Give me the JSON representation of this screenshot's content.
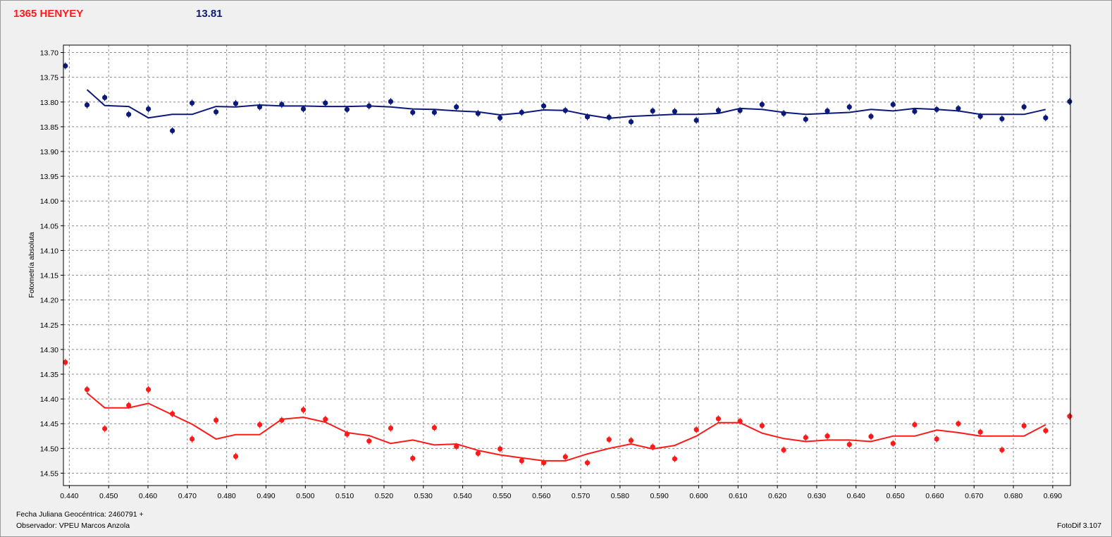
{
  "header": {
    "object_name": "1365 HENYEY",
    "magnitude": "13.81"
  },
  "footer": {
    "date_label": "Fecha Juliana Geocéntrica: 2460791 +",
    "observer_label": "Observador: VPEU Marcos Anzola",
    "version_label": "FotoDif 3.107"
  },
  "colors": {
    "blue_series": "#0b1a7a",
    "red_series": "#ff1a1a",
    "plot_background": "#ffffff",
    "window_background": "#f0f0f0"
  },
  "chart_data": {
    "type": "scatter",
    "title": "",
    "xlabel": "",
    "ylabel": "Fotometría absoluta",
    "xlim": [
      0.4385,
      0.6945
    ],
    "ylim": [
      13.685,
      14.575
    ],
    "y_inverted": true,
    "grid": true,
    "x_ticks": [
      "0.440",
      "0.450",
      "0.460",
      "0.470",
      "0.480",
      "0.490",
      "0.500",
      "0.510",
      "0.520",
      "0.530",
      "0.540",
      "0.550",
      "0.560",
      "0.570",
      "0.580",
      "0.590",
      "0.600",
      "0.610",
      "0.620",
      "0.630",
      "0.640",
      "0.650",
      "0.660",
      "0.670",
      "0.680",
      "0.690"
    ],
    "y_ticks": [
      "13.70",
      "13.75",
      "13.80",
      "13.85",
      "13.90",
      "13.95",
      "14.00",
      "14.05",
      "14.10",
      "14.15",
      "14.20",
      "14.25",
      "14.30",
      "14.35",
      "14.40",
      "14.45",
      "14.50",
      "14.55"
    ],
    "series": [
      {
        "color": "#0b1a7a",
        "x": [
          0.439,
          0.4445,
          0.449,
          0.4551,
          0.4601,
          0.4662,
          0.4712,
          0.4773,
          0.4823,
          0.4884,
          0.494,
          0.4995,
          0.5051,
          0.5106,
          0.5162,
          0.5217,
          0.5273,
          0.5328,
          0.5384,
          0.5439,
          0.5495,
          0.555,
          0.5606,
          0.5661,
          0.5717,
          0.5772,
          0.5828,
          0.5883,
          0.5939,
          0.5994,
          0.605,
          0.6105,
          0.6161,
          0.6216,
          0.6272,
          0.6327,
          0.6383,
          0.6438,
          0.6494,
          0.6549,
          0.6605,
          0.666,
          0.6716,
          0.6771,
          0.6827,
          0.6882,
          0.6943
        ],
        "y": [
          13.727,
          13.806,
          13.791,
          13.825,
          13.814,
          13.858,
          13.802,
          13.82,
          13.803,
          13.81,
          13.805,
          13.814,
          13.802,
          13.815,
          13.808,
          13.799,
          13.821,
          13.821,
          13.81,
          13.823,
          13.832,
          13.821,
          13.808,
          13.817,
          13.83,
          13.831,
          13.84,
          13.818,
          13.819,
          13.837,
          13.817,
          13.817,
          13.805,
          13.823,
          13.835,
          13.818,
          13.81,
          13.829,
          13.805,
          13.819,
          13.815,
          13.813,
          13.829,
          13.834,
          13.81,
          13.832,
          13.799
        ]
      },
      {
        "color": "#ff1a1a",
        "x": [
          0.439,
          0.4445,
          0.449,
          0.4551,
          0.4601,
          0.4662,
          0.4712,
          0.4773,
          0.4823,
          0.4884,
          0.494,
          0.4995,
          0.5051,
          0.5106,
          0.5162,
          0.5217,
          0.5273,
          0.5328,
          0.5384,
          0.5439,
          0.5495,
          0.555,
          0.5606,
          0.5661,
          0.5717,
          0.5772,
          0.5828,
          0.5883,
          0.5939,
          0.5994,
          0.605,
          0.6105,
          0.6161,
          0.6216,
          0.6272,
          0.6327,
          0.6383,
          0.6438,
          0.6494,
          0.6549,
          0.6605,
          0.666,
          0.6716,
          0.6771,
          0.6827,
          0.6882,
          0.6943
        ],
        "y": [
          14.326,
          14.381,
          14.46,
          14.413,
          14.381,
          14.43,
          14.481,
          14.443,
          14.516,
          14.452,
          14.443,
          14.422,
          14.441,
          14.471,
          14.485,
          14.459,
          14.52,
          14.458,
          14.496,
          14.51,
          14.501,
          14.525,
          14.529,
          14.517,
          14.529,
          14.482,
          14.484,
          14.497,
          14.521,
          14.462,
          14.44,
          14.445,
          14.454,
          14.503,
          14.478,
          14.475,
          14.492,
          14.476,
          14.49,
          14.452,
          14.481,
          14.45,
          14.467,
          14.503,
          14.454,
          14.464,
          14.435
        ]
      }
    ],
    "trend_lines": [
      {
        "color": "#0b1a7a",
        "x": [
          0.4445,
          0.449,
          0.4551,
          0.4601,
          0.4662,
          0.4712,
          0.4773,
          0.4823,
          0.4884,
          0.494,
          0.4995,
          0.5051,
          0.5106,
          0.5162,
          0.5217,
          0.5273,
          0.5328,
          0.5384,
          0.5439,
          0.5495,
          0.555,
          0.5606,
          0.5661,
          0.5717,
          0.5772,
          0.5828,
          0.5883,
          0.5939,
          0.5994,
          0.605,
          0.6105,
          0.6161,
          0.6216,
          0.6272,
          0.6327,
          0.6383,
          0.6438,
          0.6494,
          0.6549,
          0.6605,
          0.666,
          0.6716,
          0.6771,
          0.6827,
          0.6882
        ],
        "y": [
          13.775,
          13.807,
          13.809,
          13.832,
          13.825,
          13.825,
          13.809,
          13.81,
          13.806,
          13.808,
          13.808,
          13.809,
          13.809,
          13.808,
          13.81,
          13.814,
          13.815,
          13.818,
          13.82,
          13.826,
          13.822,
          13.816,
          13.817,
          13.826,
          13.833,
          13.829,
          13.827,
          13.825,
          13.825,
          13.823,
          13.813,
          13.815,
          13.821,
          13.825,
          13.823,
          13.821,
          13.815,
          13.818,
          13.813,
          13.815,
          13.818,
          13.825,
          13.825,
          13.825,
          13.815
        ]
      },
      {
        "color": "#ff1a1a",
        "x": [
          0.4445,
          0.449,
          0.4551,
          0.4601,
          0.4662,
          0.4712,
          0.4773,
          0.4823,
          0.4884,
          0.494,
          0.4995,
          0.5051,
          0.5106,
          0.5162,
          0.5217,
          0.5273,
          0.5328,
          0.5384,
          0.5439,
          0.5495,
          0.555,
          0.5606,
          0.5661,
          0.5717,
          0.5772,
          0.5828,
          0.5883,
          0.5939,
          0.5994,
          0.605,
          0.6105,
          0.6161,
          0.6216,
          0.6272,
          0.6327,
          0.6383,
          0.6438,
          0.6494,
          0.6549,
          0.6605,
          0.666,
          0.6716,
          0.6771,
          0.6827,
          0.6882
        ],
        "y": [
          14.388,
          14.418,
          14.418,
          14.409,
          14.432,
          14.451,
          14.481,
          14.472,
          14.472,
          14.441,
          14.437,
          14.447,
          14.468,
          14.474,
          14.49,
          14.483,
          14.493,
          14.491,
          14.504,
          14.513,
          14.519,
          14.525,
          14.525,
          14.511,
          14.5,
          14.491,
          14.501,
          14.494,
          14.475,
          14.448,
          14.448,
          14.469,
          14.48,
          14.486,
          14.483,
          14.483,
          14.486,
          14.475,
          14.475,
          14.463,
          14.468,
          14.475,
          14.475,
          14.475,
          14.452
        ]
      }
    ]
  }
}
